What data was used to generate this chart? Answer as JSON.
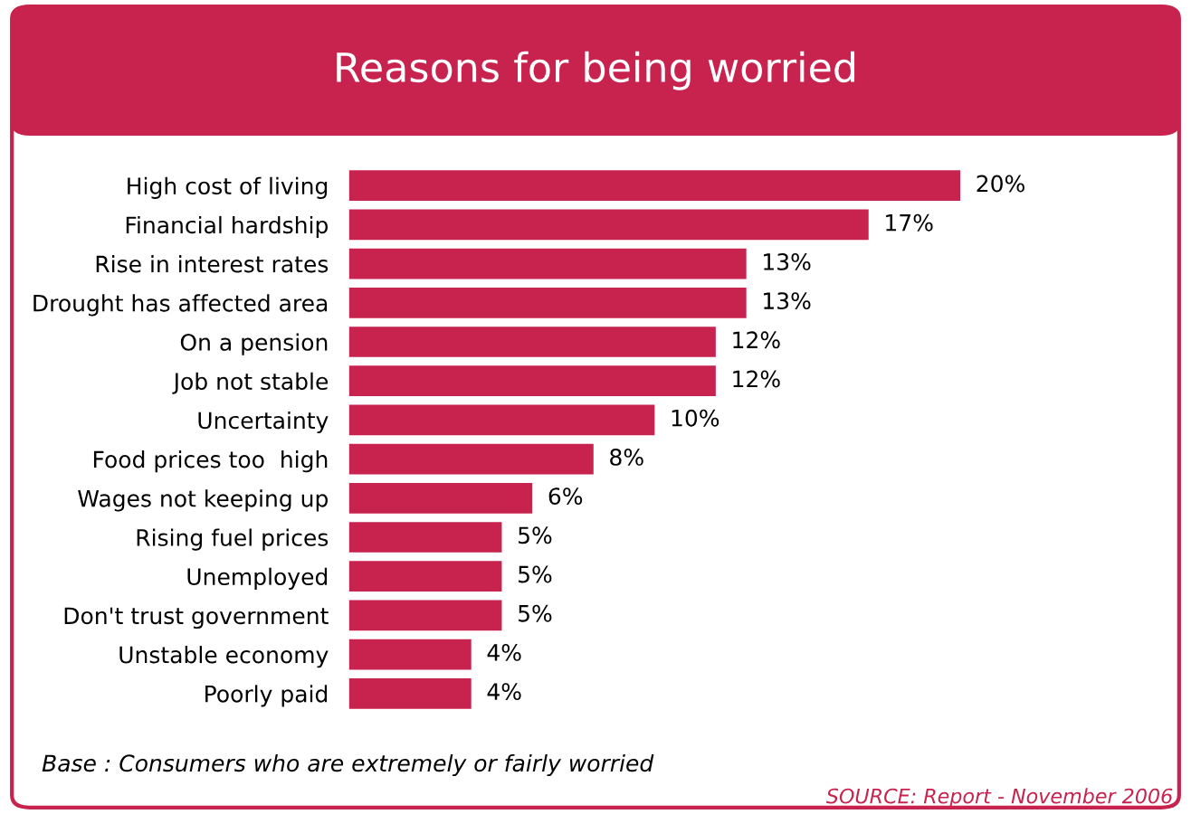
{
  "chart_data": {
    "type": "bar",
    "orientation": "horizontal",
    "title": "Reasons for being worried",
    "categories": [
      "High cost of living",
      "Financial hardship",
      "Rise in interest rates",
      "Drought has affected area",
      "On a pension",
      "Job not stable",
      "Uncertainty",
      "Food prices too  high",
      "Wages not keeping up",
      "Rising fuel prices",
      "Unemployed",
      "Don't trust government",
      "Unstable economy",
      "Poorly paid"
    ],
    "values": [
      20,
      17,
      13,
      13,
      12,
      12,
      10,
      8,
      6,
      5,
      5,
      5,
      4,
      4
    ],
    "value_labels": [
      "20%",
      "17%",
      "13%",
      "13%",
      "12%",
      "12%",
      "10%",
      "8%",
      "6%",
      "5%",
      "5%",
      "5%",
      "4%",
      "4%"
    ],
    "color": "#c8234f",
    "tick_labels": "y",
    "grid": false,
    "legend": false,
    "annotations": [
      "Base : Consumers who are extremely or fairly worried",
      "SOURCE: Report - November 2006"
    ]
  }
}
